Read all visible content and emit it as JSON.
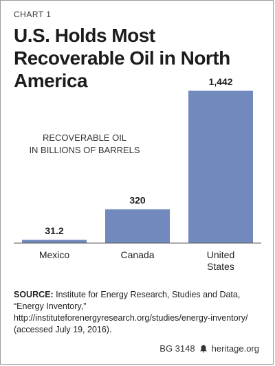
{
  "kicker": "CHART 1",
  "title": "U.S. Holds Most Recoverable Oil in North America",
  "chart_data": {
    "type": "bar",
    "annotation_line1": "RECOVERABLE OIL",
    "annotation_line2": "IN BILLIONS OF BARRELS",
    "categories": [
      [
        "Mexico"
      ],
      [
        "Canada"
      ],
      [
        "United",
        "States"
      ]
    ],
    "values": [
      31.2,
      320,
      1442
    ],
    "value_labels": [
      "31.2",
      "320",
      "1,442"
    ],
    "bar_color": "#7189bd",
    "ylim": [
      0,
      1442
    ]
  },
  "source": {
    "label": "SOURCE:",
    "text": " Institute for Energy Research, Studies and Data, “Energy Inventory,” http://instituteforenergyresearch.org/studies/energy-inventory/ (accessed July 19, 2016)."
  },
  "footer": {
    "code": "BG 3148",
    "site": "heritage.org",
    "icon": "liberty-bell-icon"
  }
}
